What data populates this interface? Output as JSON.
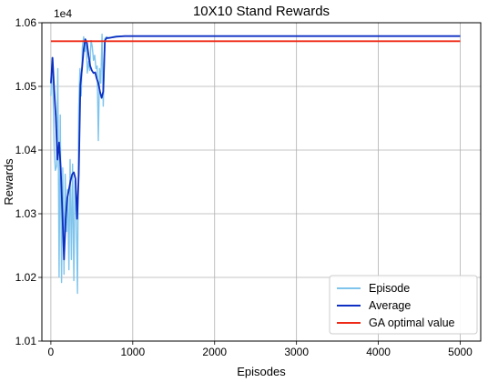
{
  "chart_data": {
    "type": "line",
    "title": "10X10 Stand Rewards",
    "xlabel": "Episodes",
    "ylabel": "Rewards",
    "offset_text": "1e4",
    "xlim": [
      -110,
      5250
    ],
    "ylim": [
      1.01,
      1.06
    ],
    "xticks": [
      0,
      1000,
      2000,
      3000,
      4000,
      5000
    ],
    "xtick_labels": [
      "0",
      "1000",
      "2000",
      "3000",
      "4000",
      "5000"
    ],
    "yticks": [
      1.01,
      1.02,
      1.03,
      1.04,
      1.05,
      1.06
    ],
    "ytick_labels": [
      "1.01",
      "1.02",
      "1.03",
      "1.04",
      "1.05",
      "1.06"
    ],
    "grid": true,
    "legend_position": "lower-right",
    "series": [
      {
        "name": "Episode",
        "color": "#7fc4ec",
        "x": [
          0,
          15,
          25,
          40,
          55,
          70,
          85,
          100,
          115,
          130,
          145,
          160,
          175,
          190,
          205,
          220,
          235,
          250,
          265,
          280,
          295,
          310,
          325,
          340,
          355,
          370,
          385,
          400,
          415,
          430,
          445,
          460,
          475,
          490,
          505,
          520,
          535,
          550,
          565,
          580,
          595,
          610,
          625,
          640,
          660,
          680,
          700,
          720,
          760,
          800,
          900,
          1000,
          2000,
          3000,
          4000,
          5000
        ],
        "y": [
          1.0485,
          1.0545,
          1.0505,
          1.0402,
          1.0368,
          1.0375,
          1.0528,
          1.0201,
          1.0455,
          1.0192,
          1.0372,
          1.0205,
          1.0362,
          1.0272,
          1.0338,
          1.0212,
          1.0385,
          1.0228,
          1.0378,
          1.0195,
          1.0352,
          1.0292,
          1.0175,
          1.0468,
          1.0528,
          1.0485,
          1.0562,
          1.0578,
          1.0555,
          1.0572,
          1.0521,
          1.0539,
          1.0525,
          1.0572,
          1.0563,
          1.0541,
          1.0549,
          1.0528,
          1.0532,
          1.0415,
          1.0528,
          1.0505,
          1.0582,
          1.0469,
          1.0575,
          1.0578,
          1.0576,
          1.0576,
          1.0578,
          1.0579,
          1.0579,
          1.0579,
          1.0579,
          1.0579,
          1.0579,
          1.0579
        ]
      },
      {
        "name": "Average",
        "color": "#0d2fc2",
        "x": [
          0,
          20,
          40,
          60,
          80,
          100,
          120,
          140,
          160,
          180,
          200,
          220,
          240,
          260,
          280,
          300,
          320,
          340,
          360,
          380,
          400,
          420,
          440,
          460,
          480,
          500,
          520,
          540,
          560,
          580,
          600,
          620,
          640,
          660,
          680,
          700,
          750,
          800,
          900,
          1000,
          2000,
          3000,
          4000,
          5000
        ],
        "y": [
          1.0505,
          1.0545,
          1.0495,
          1.0452,
          1.0385,
          1.0412,
          1.0372,
          1.0302,
          1.0228,
          1.0292,
          1.0325,
          1.0338,
          1.0352,
          1.0362,
          1.0365,
          1.0355,
          1.0292,
          1.0362,
          1.0502,
          1.0528,
          1.0558,
          1.0574,
          1.0568,
          1.0548,
          1.0532,
          1.0525,
          1.0521,
          1.0522,
          1.0512,
          1.0505,
          1.0492,
          1.0482,
          1.0492,
          1.0572,
          1.0576,
          1.0576,
          1.0577,
          1.0578,
          1.0579,
          1.0579,
          1.0579,
          1.0579,
          1.0579,
          1.0579
        ]
      },
      {
        "name": "GA optimal value",
        "color": "#ee2a17",
        "x": [
          0,
          5000
        ],
        "y": [
          1.0571,
          1.0571
        ]
      }
    ]
  }
}
